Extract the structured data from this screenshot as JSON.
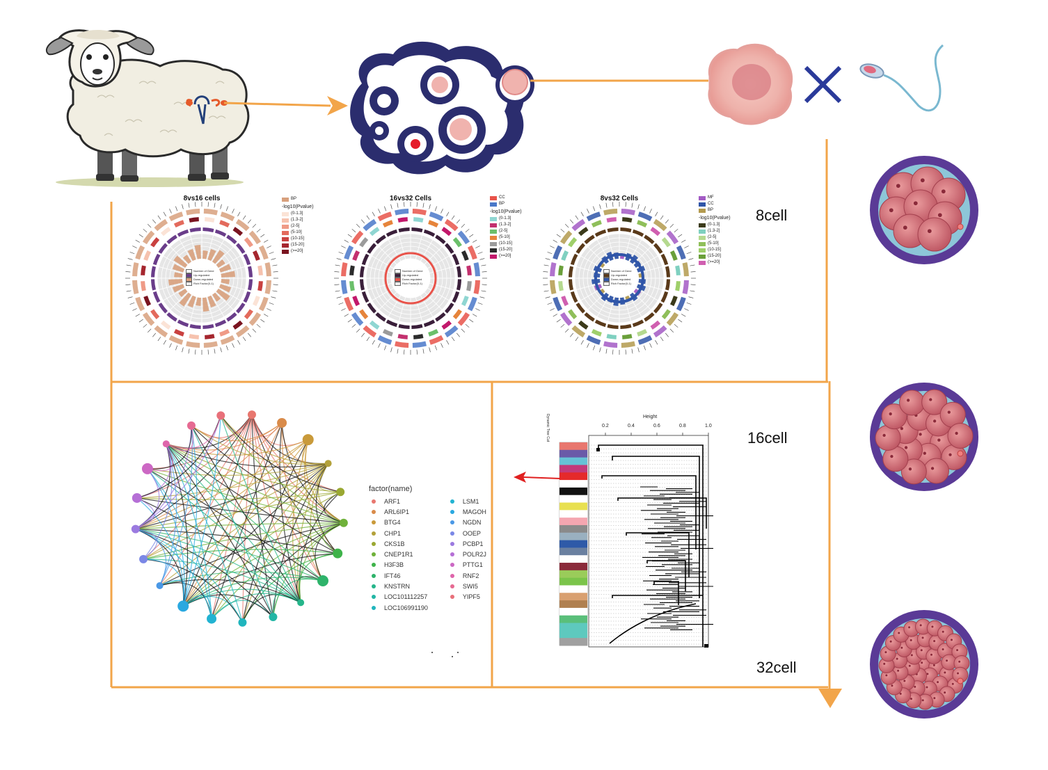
{
  "stage_labels": {
    "eight_cell": "8cell",
    "sixteen_cell": "16cell",
    "thirtytwo_cell": "32cell"
  },
  "circos_panels": [
    {
      "title": "8vs16 cells",
      "categories": [
        {
          "name": "BP",
          "color": "#d8a07c"
        }
      ],
      "pvalue_title": "-log10(Pvalue)",
      "pvalue_bins": [
        {
          "name": "(0-1.3]",
          "color": "#fbe3d6"
        },
        {
          "name": "(1.3-2]",
          "color": "#f6c2ae"
        },
        {
          "name": "(2-5]",
          "color": "#ef9a86"
        },
        {
          "name": "(5-10]",
          "color": "#e36a5c"
        },
        {
          "name": "(10-15]",
          "color": "#c94140"
        },
        {
          "name": "(15-20]",
          "color": "#a5262e"
        },
        {
          "name": "(>=20]",
          "color": "#7a1420"
        }
      ],
      "inner_key": [
        "Number of Gene",
        "Up-regulated",
        "Down-regulated",
        "Rich Factor(0-1)"
      ],
      "colors": {
        "band": "#d8a07c",
        "ring": "#6a3d8a",
        "inner": "#d8a07c"
      }
    },
    {
      "title": "16vs32 Cells",
      "categories": [
        {
          "name": "CC",
          "color": "#e8534a"
        },
        {
          "name": "BP",
          "color": "#4a78c9"
        }
      ],
      "pvalue_title": "-log10(Pvalue)",
      "pvalue_bins": [
        {
          "name": "(0-1.3]",
          "color": "#8fd6d2"
        },
        {
          "name": "(1.3-2]",
          "color": "#c3306e"
        },
        {
          "name": "(2-5]",
          "color": "#6bbf6a"
        },
        {
          "name": "(5-10]",
          "color": "#e6843b"
        },
        {
          "name": "(10-15]",
          "color": "#9b9b9b"
        },
        {
          "name": "(15-20]",
          "color": "#2b2b2b"
        },
        {
          "name": "(>=20]",
          "color": "#c2186b"
        }
      ],
      "inner_key": [
        "Number of Gene",
        "Up-regulated",
        "Down-regulated",
        "Rich Factor(0-1)"
      ],
      "colors": {
        "band": "#4a78c9",
        "ring": "#3a1f3a",
        "inner": "#e8534a"
      }
    },
    {
      "title": "8vs32 Cells",
      "categories": [
        {
          "name": "MF",
          "color": "#a35bc4"
        },
        {
          "name": "CC",
          "color": "#2f55a8"
        },
        {
          "name": "BP",
          "color": "#b39a4e"
        }
      ],
      "pvalue_title": "-log10(Pvalue)",
      "pvalue_bins": [
        {
          "name": "(0-1.3]",
          "color": "#3b3a1a"
        },
        {
          "name": "(1.3-2]",
          "color": "#7fd0c0"
        },
        {
          "name": "(2-5]",
          "color": "#b5d98f"
        },
        {
          "name": "(5-10]",
          "color": "#8fbf5a"
        },
        {
          "name": "(10-15]",
          "color": "#9fcf6a"
        },
        {
          "name": "(15-20]",
          "color": "#6a9f3a"
        },
        {
          "name": "(>=20]",
          "color": "#d05fb0"
        }
      ],
      "inner_key": [
        "Number of Gene",
        "Up-regulated",
        "Down-regulated",
        "Rich Factor(0-1)"
      ],
      "colors": {
        "band": "#4a78c9",
        "ring": "#5a3a1a",
        "inner": "#2f55a8"
      }
    }
  ],
  "network_legend": {
    "title": "factor(name)",
    "col1": [
      {
        "name": "ARF1",
        "color": "#e8776f"
      },
      {
        "name": "ARL6IP1",
        "color": "#d98b4a"
      },
      {
        "name": "BTG4",
        "color": "#c99a3a"
      },
      {
        "name": "CHP1",
        "color": "#b3a13a"
      },
      {
        "name": "CKS1B",
        "color": "#9aa832"
      },
      {
        "name": "CNEP1R1",
        "color": "#6fb13a"
      },
      {
        "name": "H3F3B",
        "color": "#3fb34a"
      },
      {
        "name": "IFT46",
        "color": "#2eb36a"
      },
      {
        "name": "KNSTRN",
        "color": "#25b58a"
      },
      {
        "name": "LOC101112257",
        "color": "#22b6a5"
      },
      {
        "name": "LOC106991190",
        "color": "#20b5bd"
      }
    ],
    "col2": [
      {
        "name": "LSM1",
        "color": "#22b3d2"
      },
      {
        "name": "MAGOH",
        "color": "#2aa8e0"
      },
      {
        "name": "NGDN",
        "color": "#4a98e6"
      },
      {
        "name": "OOEP",
        "color": "#7a87e6"
      },
      {
        "name": "PCBP1",
        "color": "#9b7ae0"
      },
      {
        "name": "POLR2J",
        "color": "#b56fd6"
      },
      {
        "name": "PTTG1",
        "color": "#cc68c4"
      },
      {
        "name": "RNF2",
        "color": "#de65ab"
      },
      {
        "name": "SWI5",
        "color": "#e66a92"
      },
      {
        "name": "YIPF5",
        "color": "#e8707a"
      }
    ]
  },
  "dendrogram": {
    "axis_title": "Height",
    "ticks": [
      "0.2",
      "0.4",
      "0.6",
      "0.8",
      "1.0"
    ],
    "side_label": "Dynamic Tree Cut",
    "module_colors": [
      "#e8776f",
      "#6a5aa8",
      "#66c2d6",
      "#c33a7a",
      "#e52a2a",
      "#ffffff",
      "#111111",
      "#ffffff",
      "#e8e050",
      "#ffffff",
      "#f4a6b0",
      "#8a8a8a",
      "#9ab0c0",
      "#2e5aa8",
      "#6a80a0",
      "#ffffff",
      "#8a2a3a",
      "#9acc5a",
      "#7bc44a",
      "#ffffff",
      "#d9a070",
      "#b08050",
      "#ffffff",
      "#5abf7a",
      "#5ec9be",
      "#5ec9be",
      "#a0a0a0"
    ]
  },
  "colors": {
    "flow": "#f2a54a",
    "navy": "#2b2d6e",
    "purple_ring": "#6a3a9a",
    "red_arrow": "#e02020"
  }
}
